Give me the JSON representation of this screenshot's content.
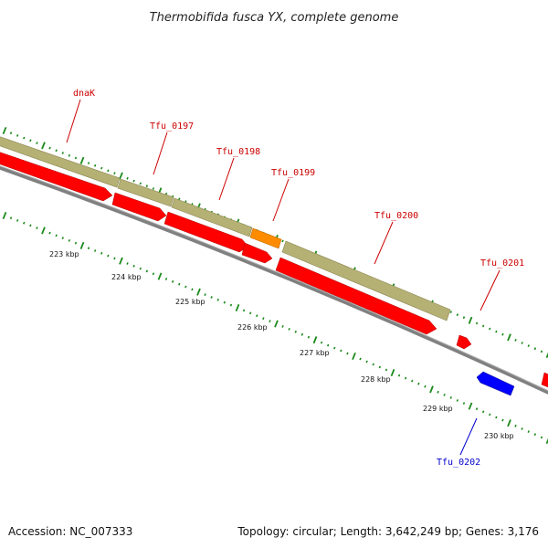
{
  "title": "Thermobifida fusca YX, complete genome",
  "accession": "Accession: NC_007333",
  "topology": "Topology: circular; Length: 3,642,249 bp; Genes: 3,176",
  "colors": {
    "forward_track": "#b5b074",
    "forward_gene": "#ff0000",
    "reverse_gene": "#0000ff",
    "highlight_gene": "#ff8c00",
    "backbone": "#808080",
    "tick": "#1a8a1a",
    "forward_label": "#cc0000",
    "reverse_label": "#0000cc"
  },
  "scale": {
    "labels": [
      "223 kbp",
      "224 kbp",
      "225 kbp",
      "226 kbp",
      "227 kbp",
      "228 kbp",
      "229 kbp",
      "230 kbp"
    ]
  },
  "genes": [
    {
      "id": "dnaK",
      "label": "dnaK",
      "strand": "forward"
    },
    {
      "id": "Tfu_0197",
      "label": "Tfu_0197",
      "strand": "forward"
    },
    {
      "id": "Tfu_0198",
      "label": "Tfu_0198",
      "strand": "forward"
    },
    {
      "id": "Tfu_0199",
      "label": "Tfu_0199",
      "strand": "forward"
    },
    {
      "id": "Tfu_0200",
      "label": "Tfu_0200",
      "strand": "forward"
    },
    {
      "id": "Tfu_0201",
      "label": "Tfu_0201",
      "strand": "forward"
    },
    {
      "id": "Tfu_0202",
      "label": "Tfu_0202",
      "strand": "reverse"
    }
  ]
}
